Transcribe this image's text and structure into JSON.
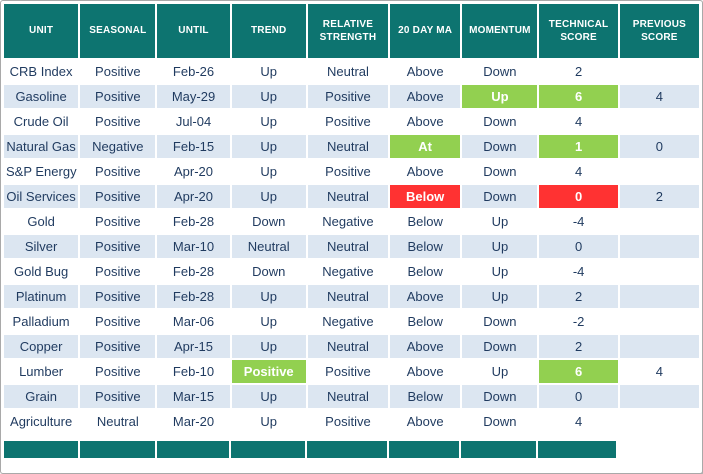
{
  "colors": {
    "header_bg": "#0d7470",
    "row_alt_bg": "#dce6f1",
    "highlight_green": "#92d050",
    "highlight_red": "#ff3232",
    "body_text": "#1f3a5f",
    "header_text": "#ffffff"
  },
  "chart_data": {
    "type": "table",
    "title": "",
    "columns": [
      "Unit",
      "Seasonal",
      "Until",
      "Trend",
      "Relative Strength",
      "20 Day MA",
      "Momentum",
      "Technical Score",
      "Previous Score"
    ],
    "column_keys": [
      "unit",
      "seasonal",
      "until",
      "trend",
      "relative-strength",
      "20-day-ma",
      "momentum",
      "technical-score",
      "previous-score"
    ],
    "rows": [
      [
        "CRB Index",
        "Positive",
        "Feb-26",
        "Up",
        "Neutral",
        "Above",
        "Down",
        "2",
        ""
      ],
      [
        "Gasoline",
        "Positive",
        "May-29",
        "Up",
        "Positive",
        "Above",
        {
          "v": "Up",
          "hl": "green"
        },
        {
          "v": "6",
          "hl": "green"
        },
        "4"
      ],
      [
        "Crude Oil",
        "Positive",
        "Jul-04",
        "Up",
        "Positive",
        "Above",
        "Down",
        "4",
        ""
      ],
      [
        "Natural Gas",
        "Negative",
        "Feb-15",
        "Up",
        "Neutral",
        {
          "v": "At",
          "hl": "green"
        },
        "Down",
        {
          "v": "1",
          "hl": "green"
        },
        "0"
      ],
      [
        "S&P Energy",
        "Positive",
        "Apr-20",
        "Up",
        "Positive",
        "Above",
        "Down",
        "4",
        ""
      ],
      [
        "Oil Services",
        "Positive",
        "Apr-20",
        "Up",
        "Neutral",
        {
          "v": "Below",
          "hl": "red"
        },
        "Down",
        {
          "v": "0",
          "hl": "red"
        },
        "2"
      ],
      [
        "Gold",
        "Positive",
        "Feb-28",
        "Down",
        "Negative",
        "Below",
        "Up",
        "-4",
        ""
      ],
      [
        "Silver",
        "Positive",
        "Mar-10",
        "Neutral",
        "Neutral",
        "Below",
        "Up",
        "0",
        ""
      ],
      [
        "Gold Bug",
        "Positive",
        "Feb-28",
        "Down",
        "Negative",
        "Below",
        "Up",
        "-4",
        ""
      ],
      [
        "Platinum",
        "Positive",
        "Feb-28",
        "Up",
        "Neutral",
        "Above",
        "Up",
        "2",
        ""
      ],
      [
        "Palladium",
        "Positive",
        "Mar-06",
        "Up",
        "Negative",
        "Below",
        "Down",
        "-2",
        ""
      ],
      [
        "Copper",
        "Positive",
        "Apr-15",
        "Up",
        "Neutral",
        "Above",
        "Down",
        "2",
        ""
      ],
      [
        "Lumber",
        "Positive",
        "Feb-10",
        {
          "v": "Positive",
          "hl": "green"
        },
        "Positive",
        "Above",
        "Up",
        {
          "v": "6",
          "hl": "green"
        },
        "4"
      ],
      [
        "Grain",
        "Positive",
        "Mar-15",
        "Up",
        "Neutral",
        "Below",
        "Down",
        "0",
        ""
      ],
      [
        "Agriculture",
        "Neutral",
        "Mar-20",
        "Up",
        "Positive",
        "Above",
        "Down",
        "4",
        ""
      ]
    ]
  }
}
